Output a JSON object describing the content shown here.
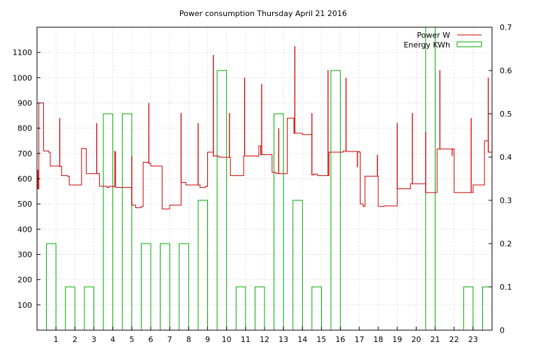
{
  "chart_data": {
    "type": "bar+line",
    "title": "Power consumption Thursday April 21 2016",
    "xlabel": "",
    "ylabel": "",
    "xlim": [
      0,
      24
    ],
    "ylim": [
      0,
      1200
    ],
    "y2lim": [
      0,
      0.7
    ],
    "x_ticks": [
      "1",
      "2",
      "3",
      "4",
      "5",
      "6",
      "7",
      "8",
      "9",
      "10",
      "11",
      "12",
      "13",
      "14",
      "15",
      "16",
      "17",
      "18",
      "19",
      "20",
      "21",
      "22",
      "23"
    ],
    "y_ticks": [
      100,
      200,
      300,
      400,
      500,
      600,
      700,
      800,
      900,
      1000,
      1100
    ],
    "y2_ticks": [
      0,
      0.1,
      0.2,
      0.3,
      0.4,
      0.5,
      0.6,
      0.7
    ],
    "grid": true,
    "legend_position": "top-right",
    "series": [
      {
        "name": "Power W",
        "type": "line",
        "axis": "left",
        "color": "#cc0000",
        "points": [
          [
            0.0,
            560
          ],
          [
            0.1,
            900
          ],
          [
            0.3,
            900
          ],
          [
            0.35,
            710
          ],
          [
            0.6,
            705
          ],
          [
            0.7,
            650
          ],
          [
            1.2,
            648
          ],
          [
            1.3,
            612
          ],
          [
            1.6,
            610
          ],
          [
            1.7,
            575
          ],
          [
            2.3,
            575
          ],
          [
            2.35,
            720
          ],
          [
            2.55,
            718
          ],
          [
            2.6,
            620
          ],
          [
            3.2,
            620
          ],
          [
            3.3,
            570
          ],
          [
            3.7,
            565
          ],
          [
            3.8,
            570
          ],
          [
            4.0,
            568
          ],
          [
            4.1,
            705
          ],
          [
            4.15,
            565
          ],
          [
            4.9,
            565
          ],
          [
            5.0,
            495
          ],
          [
            5.2,
            485
          ],
          [
            5.5,
            490
          ],
          [
            5.6,
            665
          ],
          [
            5.9,
            660
          ],
          [
            6.0,
            650
          ],
          [
            6.5,
            650
          ],
          [
            6.6,
            480
          ],
          [
            6.9,
            480
          ],
          [
            7.0,
            495
          ],
          [
            7.5,
            495
          ],
          [
            7.6,
            585
          ],
          [
            7.8,
            585
          ],
          [
            7.85,
            575
          ],
          [
            8.1,
            575
          ],
          [
            8.5,
            575
          ],
          [
            8.6,
            565
          ],
          [
            8.9,
            570
          ],
          [
            9.0,
            705
          ],
          [
            9.2,
            705
          ],
          [
            9.3,
            690
          ],
          [
            9.6,
            685
          ],
          [
            10.0,
            685
          ],
          [
            10.2,
            612
          ],
          [
            10.8,
            612
          ],
          [
            10.9,
            690
          ],
          [
            11.6,
            690
          ],
          [
            11.7,
            730
          ],
          [
            11.8,
            695
          ],
          [
            12.3,
            695
          ],
          [
            12.4,
            625
          ],
          [
            12.6,
            620
          ],
          [
            12.7,
            620
          ],
          [
            13.1,
            620
          ],
          [
            13.2,
            840
          ],
          [
            13.5,
            840
          ],
          [
            13.55,
            780
          ],
          [
            13.9,
            780
          ],
          [
            14.0,
            775
          ],
          [
            14.4,
            775
          ],
          [
            14.5,
            615
          ],
          [
            14.6,
            618
          ],
          [
            14.8,
            612
          ],
          [
            15.3,
            612
          ],
          [
            15.4,
            705
          ],
          [
            16.0,
            705
          ],
          [
            16.15,
            710
          ],
          [
            16.3,
            708
          ],
          [
            17.0,
            705
          ],
          [
            17.05,
            500
          ],
          [
            17.2,
            490
          ],
          [
            17.3,
            610
          ],
          [
            17.9,
            610
          ],
          [
            18.0,
            490
          ],
          [
            18.3,
            492
          ],
          [
            18.9,
            492
          ],
          [
            19.0,
            560
          ],
          [
            19.5,
            560
          ],
          [
            19.7,
            580
          ],
          [
            20.4,
            580
          ],
          [
            20.5,
            545
          ],
          [
            21.0,
            545
          ],
          [
            21.1,
            718
          ],
          [
            21.6,
            718
          ],
          [
            21.9,
            718
          ],
          [
            22.0,
            545
          ],
          [
            22.5,
            545
          ],
          [
            22.9,
            545
          ],
          [
            23.0,
            575
          ],
          [
            23.5,
            575
          ],
          [
            23.6,
            750
          ],
          [
            23.8,
            705
          ],
          [
            24.0,
            705
          ]
        ],
        "spikes": [
          [
            0.05,
            635
          ],
          [
            1.2,
            840
          ],
          [
            3.15,
            820
          ],
          [
            4.1,
            710
          ],
          [
            5.0,
            690
          ],
          [
            5.9,
            900
          ],
          [
            7.6,
            860
          ],
          [
            8.5,
            820
          ],
          [
            9.3,
            1090
          ],
          [
            10.15,
            860
          ],
          [
            10.95,
            1000
          ],
          [
            11.85,
            975
          ],
          [
            12.75,
            800
          ],
          [
            13.6,
            1125
          ],
          [
            14.5,
            860
          ],
          [
            15.35,
            1030
          ],
          [
            16.3,
            1000
          ],
          [
            16.9,
            645
          ],
          [
            17.95,
            695
          ],
          [
            19.0,
            820
          ],
          [
            19.8,
            860
          ],
          [
            20.5,
            785
          ],
          [
            21.25,
            1030
          ],
          [
            21.9,
            690
          ],
          [
            22.9,
            840
          ],
          [
            23.8,
            1000
          ]
        ]
      },
      {
        "name": "Energy KWh",
        "type": "bar",
        "axis": "right",
        "color": "#00aa00",
        "x": [
          0,
          1,
          2,
          3,
          4,
          5,
          6,
          7,
          8,
          9,
          10,
          11,
          12,
          13,
          14,
          15,
          16,
          17,
          18,
          19,
          20,
          21,
          22,
          23
        ],
        "values": [
          0.2,
          0.1,
          0.1,
          0.5,
          0.5,
          0.2,
          0.2,
          0.2,
          0.3,
          0.6,
          0.1,
          0.1,
          0.5,
          0.3,
          0.1,
          0.6,
          0,
          0,
          0,
          0,
          0.7,
          0,
          0.1,
          0.1
        ]
      }
    ]
  }
}
